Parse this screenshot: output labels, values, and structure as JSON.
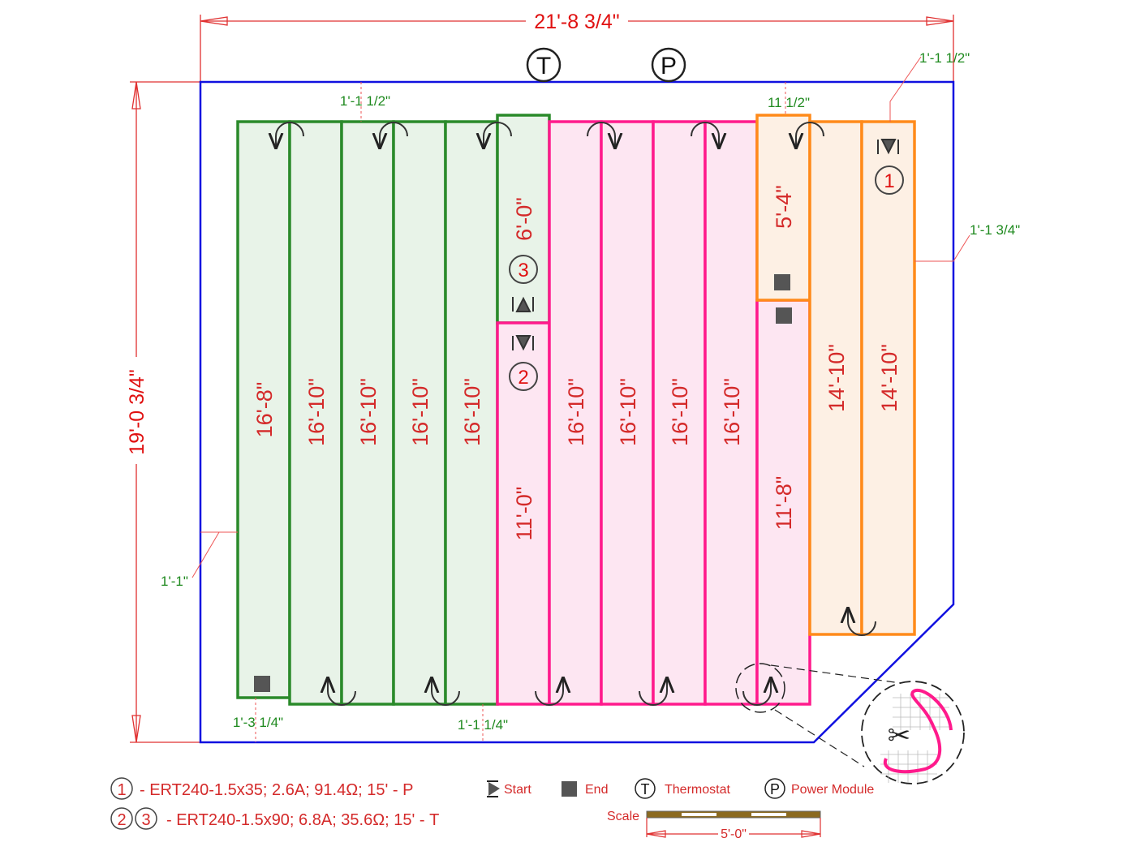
{
  "plan": {
    "overall_width": "21'-8 3/4\"",
    "overall_height": "19'-0 3/4\"",
    "symbols": {
      "thermostat": "T",
      "power_module": "P"
    },
    "colors": {
      "wall": "#1010e0",
      "zone_1": "#ff8a1a",
      "zone_2": "#ff1a8c",
      "zone_3": "#2a8a2a",
      "dimension": "#e03030",
      "offset_text": "#1f8a1f"
    },
    "strips": {
      "g1": "16'-8\"",
      "g2": "16'-10\"",
      "g3": "16'-10\"",
      "g4": "16'-10\"",
      "g5": "16'-10\"",
      "g6": "6'-0\"",
      "p6": "11'-0\"",
      "p1": "16'-10\"",
      "p2": "16'-10\"",
      "p3": "16'-10\"",
      "p4": "16'-10\"",
      "o1": "5'-4\"",
      "p5": "11'-8\"",
      "o2": "14'-10\"",
      "o3": "14'-10\""
    },
    "cable_markers": {
      "c1": "1",
      "c2": "2",
      "c3": "3"
    },
    "offsets": {
      "top_green": "1'-1 1/2\"",
      "top_orange": "11 1/2\"",
      "top_right": "1'-1 1/2\"",
      "right": "1'-1 3/4\"",
      "left": "1'-1\"",
      "bottom_left": "1'-3 1/4\"",
      "bottom_mid": "1'-1 1/4\""
    }
  },
  "legend": {
    "cable1": {
      "num": "1",
      "text": "- ERT240-1.5x35; 2.6A; 91.4Ω; 15' - P"
    },
    "cable23": {
      "num_a": "2",
      "num_b": "3",
      "text": "- ERT240-1.5x90; 6.8A; 35.6Ω; 15' - T"
    },
    "start": "Start",
    "end": "End",
    "thermostat": {
      "sym": "T",
      "label": "Thermostat"
    },
    "power": {
      "sym": "P",
      "label": "Power Module"
    },
    "scale": {
      "label": "Scale",
      "length": "5'-0\""
    }
  }
}
